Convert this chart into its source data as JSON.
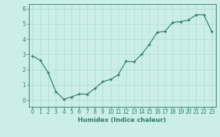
{
  "x": [
    0,
    1,
    2,
    3,
    4,
    5,
    6,
    7,
    8,
    9,
    10,
    11,
    12,
    13,
    14,
    15,
    16,
    17,
    18,
    19,
    20,
    21,
    22,
    23
  ],
  "y": [
    2.9,
    2.6,
    1.8,
    0.55,
    0.05,
    0.2,
    0.4,
    0.38,
    0.75,
    1.2,
    1.35,
    1.65,
    2.55,
    2.5,
    3.0,
    3.65,
    4.45,
    4.5,
    5.1,
    5.15,
    5.25,
    5.6,
    5.6,
    4.5
  ],
  "title": "",
  "xlabel": "Humidex (Indice chaleur)",
  "ylabel": "",
  "xlim": [
    -0.5,
    23.5
  ],
  "ylim": [
    -0.45,
    6.3
  ],
  "yticks": [
    0,
    1,
    2,
    3,
    4,
    5,
    6
  ],
  "xticks": [
    0,
    1,
    2,
    3,
    4,
    5,
    6,
    7,
    8,
    9,
    10,
    11,
    12,
    13,
    14,
    15,
    16,
    17,
    18,
    19,
    20,
    21,
    22,
    23
  ],
  "line_color": "#2a7a6a",
  "marker": "+",
  "bg_color": "#cceee8",
  "grid_color": "#aad8d0",
  "axis_color": "#2a7a6a",
  "xlabel_fontsize": 6.5,
  "tick_fontsize": 5.5,
  "linewidth": 0.9,
  "markersize": 3.5,
  "markeredgewidth": 1.0
}
